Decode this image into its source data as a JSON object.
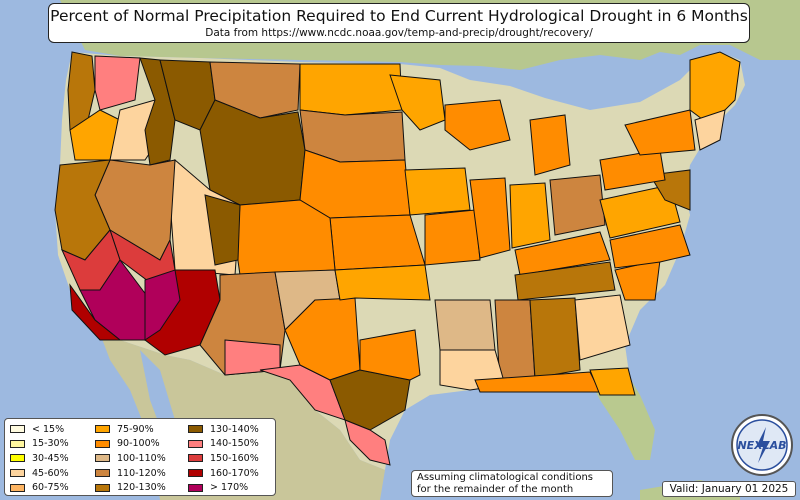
{
  "title": "Percent of Normal Precipitation Required to End Current Hydrological Drought in 6 Months",
  "subtitle": "Data from https://www.ncdc.noaa.gov/temp-and-precip/drought/recovery/",
  "legend": [
    {
      "label": "< 15%",
      "color": "#fffbe0"
    },
    {
      "label": "15-30%",
      "color": "#fff7a0"
    },
    {
      "label": "30-45%",
      "color": "#ffff00"
    },
    {
      "label": "45-60%",
      "color": "#fdd49e"
    },
    {
      "label": "60-75%",
      "color": "#fdb462"
    },
    {
      "label": "75-90%",
      "color": "#ffa500"
    },
    {
      "label": "90-100%",
      "color": "#ff8c00"
    },
    {
      "label": "100-110%",
      "color": "#deb887"
    },
    {
      "label": "110-120%",
      "color": "#cd853f"
    },
    {
      "label": "120-130%",
      "color": "#b8760a"
    },
    {
      "label": "130-140%",
      "color": "#8b5a00"
    },
    {
      "label": "140-150%",
      "color": "#ff7f7f"
    },
    {
      "label": "150-160%",
      "color": "#dc3c3c"
    },
    {
      "label": "160-170%",
      "color": "#b00000"
    },
    {
      "label": "> 170%",
      "color": "#b0005a"
    }
  ],
  "note_line1": "Assuming climatological conditions",
  "note_line2": "for the remainder of the month",
  "valid": "Valid: January 01 2025",
  "logo_text": "NEXLAB",
  "colors": {
    "ocean": "#9db9e0",
    "land": "#dcd9b5",
    "land_green": "#b9c98f"
  }
}
